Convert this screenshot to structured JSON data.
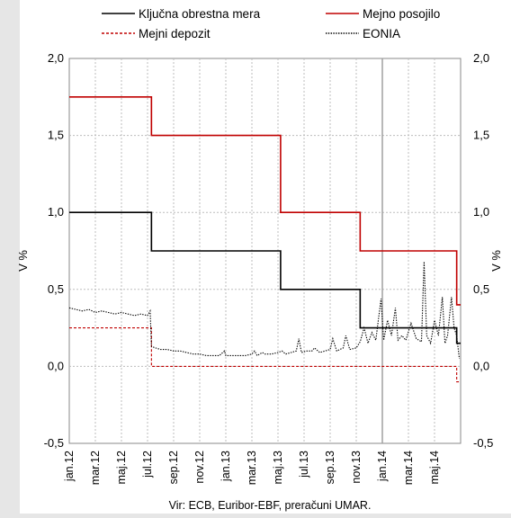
{
  "chart_data": {
    "type": "line",
    "ylabel_left": "V %",
    "ylabel_right": "V %",
    "ylim": [
      -0.5,
      2.0
    ],
    "yticks": [
      -0.5,
      0.0,
      0.5,
      1.0,
      1.5,
      2.0
    ],
    "ytick_labels": [
      "-0,5",
      "0,0",
      "0,5",
      "1,0",
      "1,5",
      "2,0"
    ],
    "xlim": [
      0,
      30
    ],
    "xtick_positions": [
      0,
      2,
      4,
      6,
      8,
      10,
      12,
      14,
      16,
      18,
      20,
      22,
      24,
      26,
      28
    ],
    "xtick_labels": [
      "jan.12",
      "mar.12",
      "maj.12",
      "jul.12",
      "sep.12",
      "nov.12",
      "jan.13",
      "mar.13",
      "maj.13",
      "jul.13",
      "sep.13",
      "nov.13",
      "jan.14",
      "mar.14",
      "maj.14"
    ],
    "grid": true,
    "vertical_marker_x": 24,
    "legend_placement": "top",
    "source": "Vir: ECB, Euribor-EBF, preračuni UMAR.",
    "series": [
      {
        "name": "Ključna obrestna mera",
        "color": "#000000",
        "dash": "solid",
        "step": true,
        "points": [
          [
            0,
            1.0
          ],
          [
            6.3,
            1.0
          ],
          [
            6.3,
            0.75
          ],
          [
            16.2,
            0.75
          ],
          [
            16.2,
            0.5
          ],
          [
            22.3,
            0.5
          ],
          [
            22.3,
            0.25
          ],
          [
            29.7,
            0.25
          ],
          [
            29.7,
            0.15
          ],
          [
            30,
            0.15
          ]
        ]
      },
      {
        "name": "Mejno posojilo",
        "color": "#c00000",
        "dash": "solid",
        "step": true,
        "points": [
          [
            0,
            1.75
          ],
          [
            6.3,
            1.75
          ],
          [
            6.3,
            1.5
          ],
          [
            16.2,
            1.5
          ],
          [
            16.2,
            1.0
          ],
          [
            22.3,
            1.0
          ],
          [
            22.3,
            0.75
          ],
          [
            29.7,
            0.75
          ],
          [
            29.7,
            0.4
          ],
          [
            30,
            0.4
          ]
        ]
      },
      {
        "name": "Mejni depozit",
        "color": "#c00000",
        "dash": "dashed",
        "step": true,
        "points": [
          [
            0,
            0.25
          ],
          [
            6.3,
            0.25
          ],
          [
            6.3,
            0.0
          ],
          [
            29.7,
            0.0
          ],
          [
            29.7,
            -0.1
          ],
          [
            30,
            -0.1
          ]
        ]
      },
      {
        "name": "EONIA",
        "color": "#000000",
        "dash": "dotted",
        "step": false,
        "points": [
          [
            0,
            0.38
          ],
          [
            0.5,
            0.37
          ],
          [
            1,
            0.36
          ],
          [
            1.5,
            0.37
          ],
          [
            2,
            0.35
          ],
          [
            2.5,
            0.36
          ],
          [
            3,
            0.35
          ],
          [
            3.5,
            0.34
          ],
          [
            4,
            0.35
          ],
          [
            4.5,
            0.34
          ],
          [
            5,
            0.33
          ],
          [
            5.5,
            0.34
          ],
          [
            6,
            0.33
          ],
          [
            6.2,
            0.36
          ],
          [
            6.3,
            0.13
          ],
          [
            6.6,
            0.12
          ],
          [
            7,
            0.11
          ],
          [
            7.5,
            0.11
          ],
          [
            8,
            0.1
          ],
          [
            8.5,
            0.1
          ],
          [
            9,
            0.09
          ],
          [
            9.5,
            0.08
          ],
          [
            10,
            0.08
          ],
          [
            10.5,
            0.07
          ],
          [
            11,
            0.07
          ],
          [
            11.5,
            0.07
          ],
          [
            11.9,
            0.1
          ],
          [
            12,
            0.07
          ],
          [
            12.5,
            0.07
          ],
          [
            13,
            0.07
          ],
          [
            13.5,
            0.07
          ],
          [
            14,
            0.08
          ],
          [
            14.2,
            0.1
          ],
          [
            14.4,
            0.07
          ],
          [
            14.8,
            0.09
          ],
          [
            15,
            0.08
          ],
          [
            15.5,
            0.08
          ],
          [
            16,
            0.09
          ],
          [
            16.3,
            0.1
          ],
          [
            16.6,
            0.08
          ],
          [
            17,
            0.09
          ],
          [
            17.4,
            0.1
          ],
          [
            17.6,
            0.18
          ],
          [
            17.8,
            0.09
          ],
          [
            18.2,
            0.1
          ],
          [
            18.6,
            0.1
          ],
          [
            18.8,
            0.12
          ],
          [
            19.2,
            0.09
          ],
          [
            19.6,
            0.1
          ],
          [
            20,
            0.11
          ],
          [
            20.2,
            0.18
          ],
          [
            20.5,
            0.1
          ],
          [
            21,
            0.12
          ],
          [
            21.2,
            0.2
          ],
          [
            21.5,
            0.11
          ],
          [
            22,
            0.12
          ],
          [
            22.3,
            0.16
          ],
          [
            22.6,
            0.25
          ],
          [
            22.9,
            0.15
          ],
          [
            23.2,
            0.22
          ],
          [
            23.5,
            0.17
          ],
          [
            23.9,
            0.44
          ],
          [
            24.1,
            0.17
          ],
          [
            24.4,
            0.3
          ],
          [
            24.7,
            0.2
          ],
          [
            25,
            0.38
          ],
          [
            25.2,
            0.17
          ],
          [
            25.5,
            0.2
          ],
          [
            25.8,
            0.17
          ],
          [
            26.2,
            0.28
          ],
          [
            26.6,
            0.18
          ],
          [
            27,
            0.16
          ],
          [
            27.2,
            0.68
          ],
          [
            27.4,
            0.2
          ],
          [
            27.7,
            0.15
          ],
          [
            28,
            0.3
          ],
          [
            28.3,
            0.2
          ],
          [
            28.6,
            0.45
          ],
          [
            28.8,
            0.15
          ],
          [
            29,
            0.2
          ],
          [
            29.3,
            0.45
          ],
          [
            29.5,
            0.25
          ],
          [
            29.7,
            0.2
          ],
          [
            29.9,
            0.05
          ]
        ]
      }
    ]
  }
}
